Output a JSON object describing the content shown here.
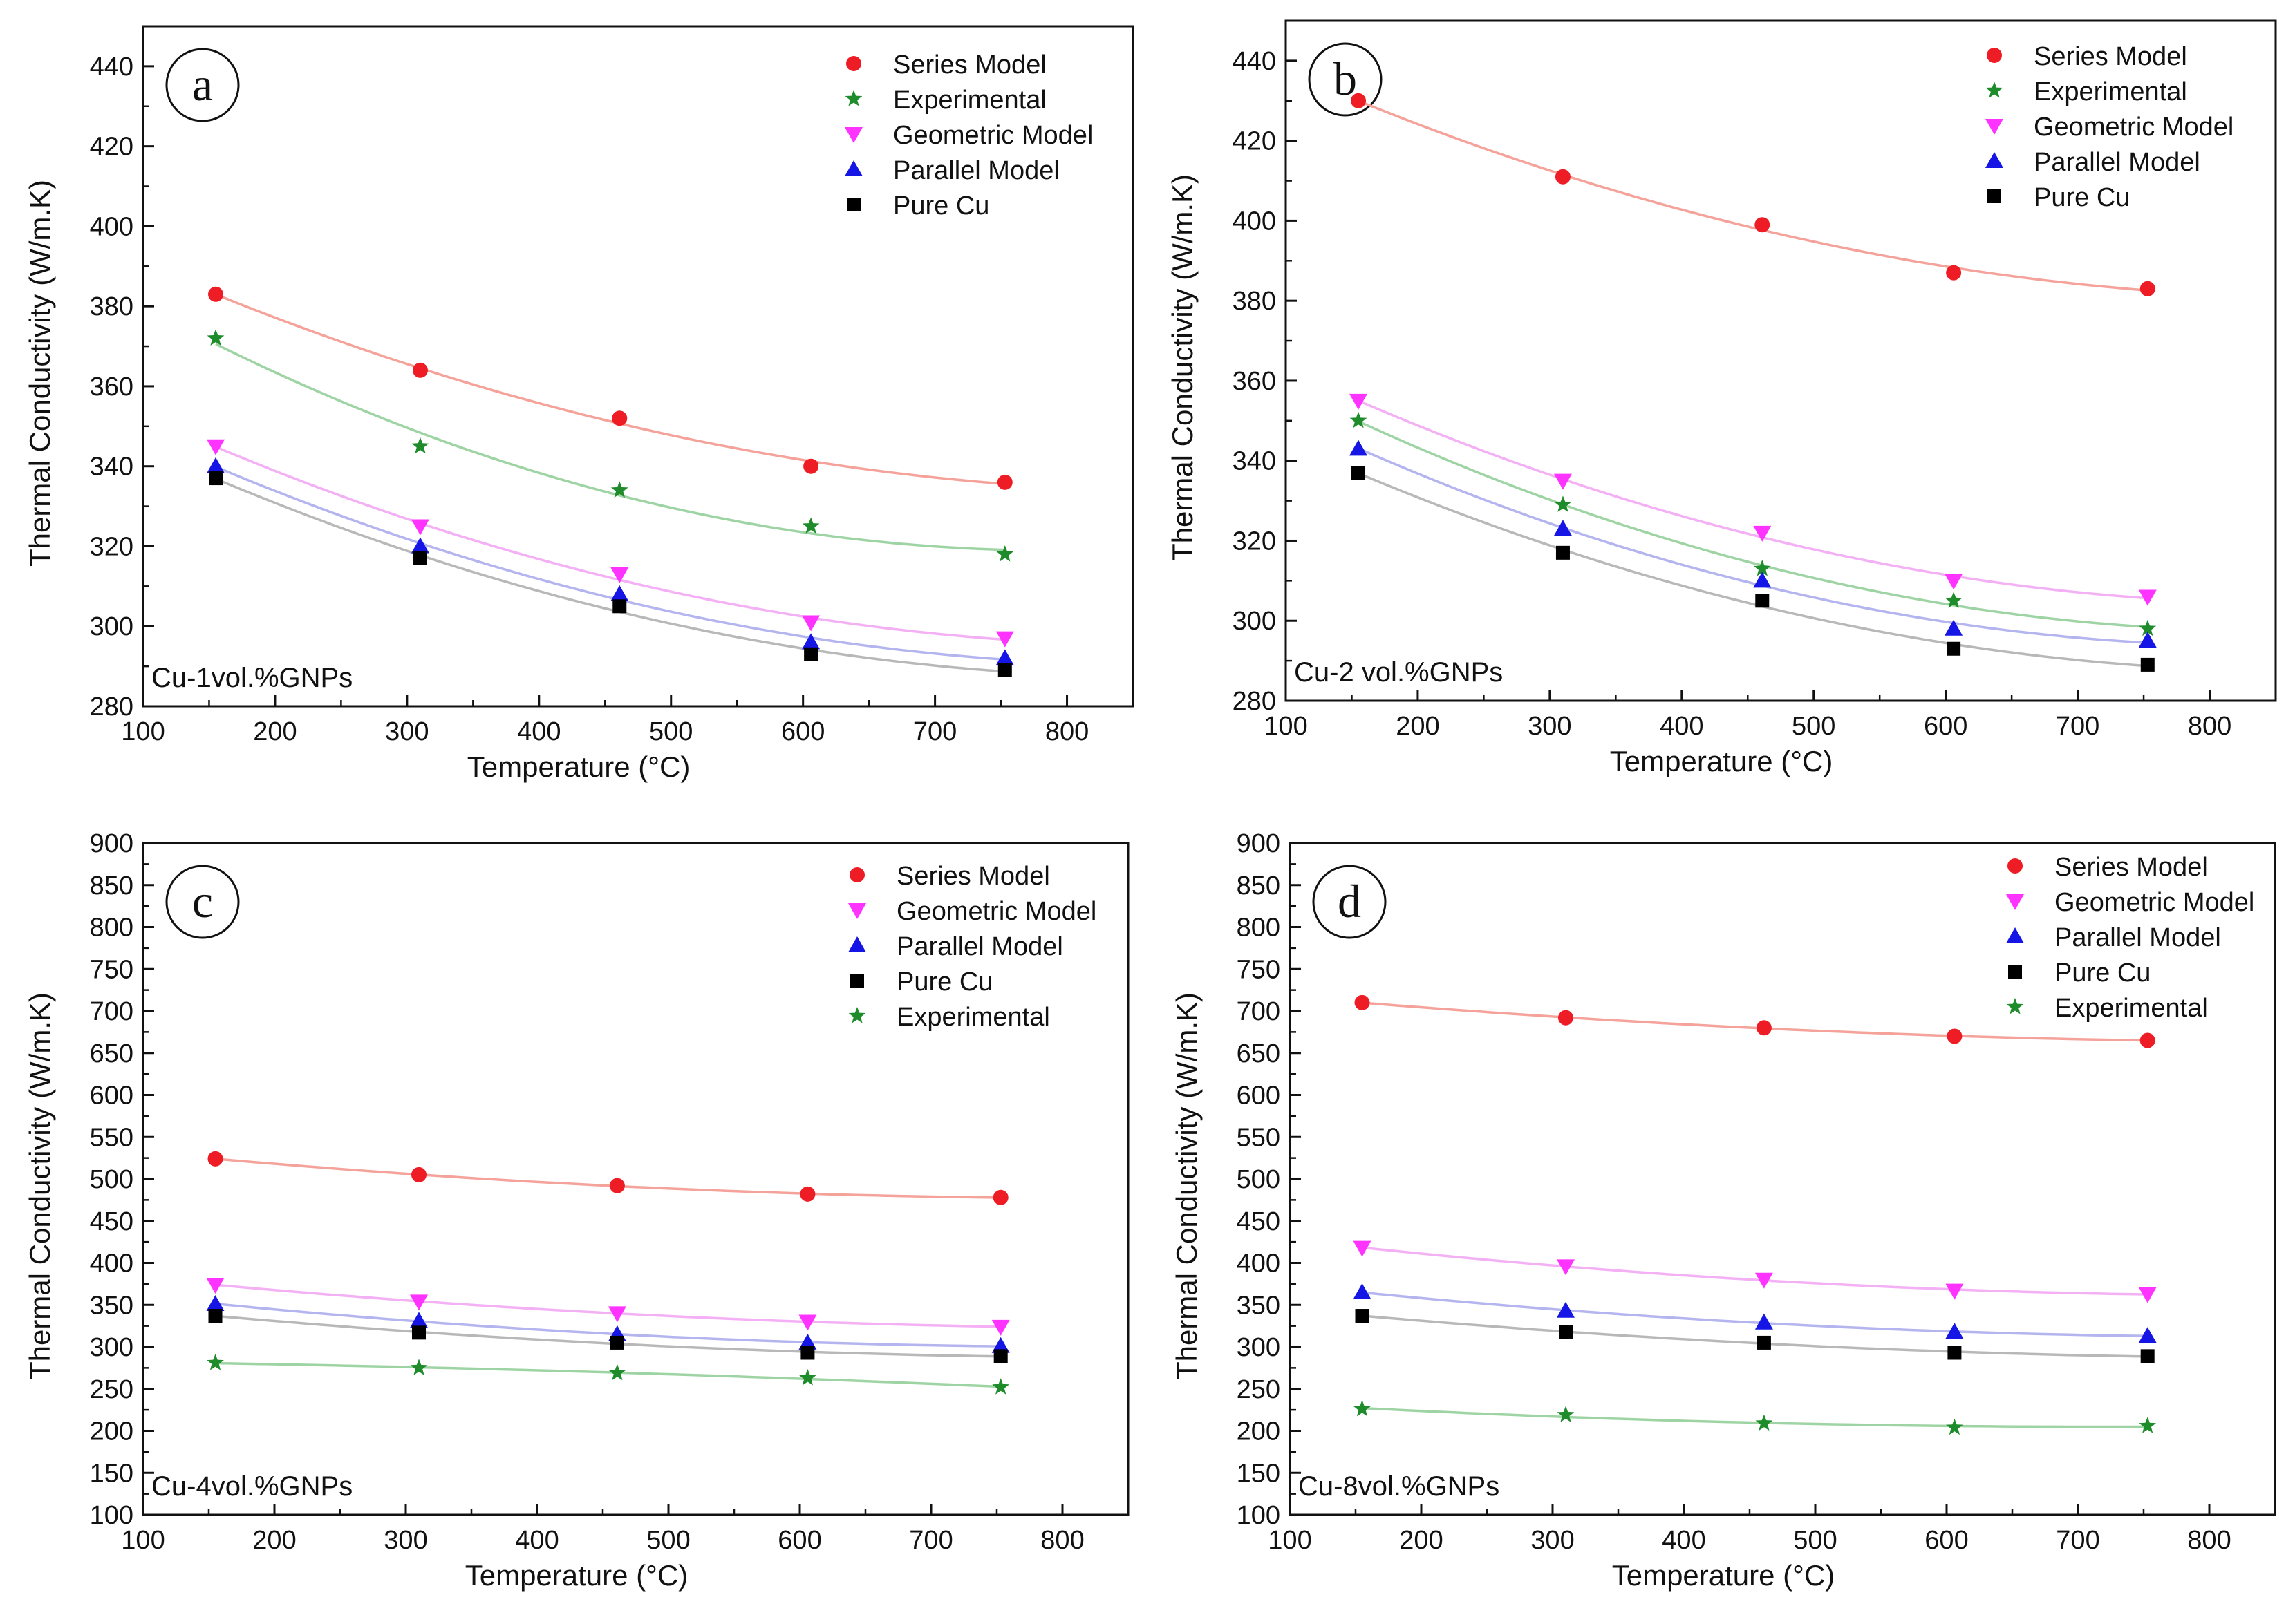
{
  "figure": {
    "colors": {
      "series_model": "#ee1c24",
      "experimental": "#1e8c2a",
      "geometric_model": "#ff33ff",
      "parallel_model": "#1515e6",
      "pure_cu": "#000000"
    },
    "fit_colors": {
      "series_model": "#f4a29a",
      "experimental": "#9ed4a3",
      "geometric_model": "#f4b0f4",
      "parallel_model": "#b4b4ef",
      "pure_cu": "#b8b8b8"
    }
  },
  "chart_data": [
    {
      "type": "scatter",
      "panel_label": "a",
      "annotation": "Cu-1vol.%GNPs",
      "xlabel": "Temperature (°C)",
      "ylabel": "Thermal Conductivity (W/m.K)",
      "xlim": [
        100,
        850
      ],
      "ylim": [
        280,
        450
      ],
      "xticks": [
        100,
        200,
        300,
        400,
        500,
        600,
        700,
        800
      ],
      "yticks": [
        280,
        300,
        320,
        340,
        360,
        380,
        400,
        420,
        440
      ],
      "x": [
        155,
        310,
        461,
        606,
        753
      ],
      "legend_order": [
        "series_model",
        "experimental",
        "geometric_model",
        "parallel_model",
        "pure_cu"
      ],
      "series": [
        {
          "key": "series_model",
          "name": "Series Model",
          "marker": "circle",
          "values": [
            383,
            364,
            352,
            340,
            336
          ]
        },
        {
          "key": "experimental",
          "name": "Experimental",
          "marker": "star",
          "values": [
            372,
            345,
            334,
            325,
            318
          ]
        },
        {
          "key": "geometric_model",
          "name": "Geometric Model",
          "marker": "triangle-down",
          "values": [
            345,
            325,
            313,
            301,
            297
          ]
        },
        {
          "key": "parallel_model",
          "name": "Parallel Model",
          "marker": "triangle-up",
          "values": [
            340,
            320,
            308,
            296,
            292
          ]
        },
        {
          "key": "pure_cu",
          "name": "Pure Cu",
          "marker": "square",
          "values": [
            337,
            317,
            305,
            293,
            289
          ]
        }
      ]
    },
    {
      "type": "scatter",
      "panel_label": "b",
      "annotation": "Cu-2 vol.%GNPs",
      "xlabel": "Temperature (°C)",
      "ylabel": "Thermal Conductivity (W/m.K)",
      "xlim": [
        100,
        850
      ],
      "ylim": [
        280,
        450
      ],
      "xticks": [
        100,
        200,
        300,
        400,
        500,
        600,
        700,
        800
      ],
      "yticks": [
        280,
        300,
        320,
        340,
        360,
        380,
        400,
        420,
        440
      ],
      "x": [
        155,
        310,
        461,
        606,
        753
      ],
      "legend_order": [
        "series_model",
        "experimental",
        "geometric_model",
        "parallel_model",
        "pure_cu"
      ],
      "series": [
        {
          "key": "series_model",
          "name": "Series Model",
          "marker": "circle",
          "values": [
            430,
            411,
            399,
            387,
            383
          ]
        },
        {
          "key": "experimental",
          "name": "Experimental",
          "marker": "star",
          "values": [
            350,
            329,
            313,
            305,
            298
          ]
        },
        {
          "key": "geometric_model",
          "name": "Geometric Model",
          "marker": "triangle-down",
          "values": [
            355,
            335,
            322,
            310,
            306
          ]
        },
        {
          "key": "parallel_model",
          "name": "Parallel Model",
          "marker": "triangle-up",
          "values": [
            343,
            323,
            310,
            298,
            295
          ]
        },
        {
          "key": "pure_cu",
          "name": "Pure Cu",
          "marker": "square",
          "values": [
            337,
            317,
            305,
            293,
            289
          ]
        }
      ]
    },
    {
      "type": "scatter",
      "panel_label": "c",
      "annotation": "Cu-4vol.%GNPs",
      "xlabel": "Temperature (°C)",
      "ylabel": "Thermal Conductivity (W/m.K)",
      "xlim": [
        100,
        850
      ],
      "ylim": [
        100,
        900
      ],
      "xticks": [
        100,
        200,
        300,
        400,
        500,
        600,
        700,
        800
      ],
      "yticks": [
        100,
        150,
        200,
        250,
        300,
        350,
        400,
        450,
        500,
        550,
        600,
        650,
        700,
        750,
        800,
        850,
        900
      ],
      "x": [
        155,
        310,
        461,
        606,
        753
      ],
      "legend_order": [
        "series_model",
        "geometric_model",
        "parallel_model",
        "pure_cu",
        "experimental"
      ],
      "series": [
        {
          "key": "series_model",
          "name": "Series Model",
          "marker": "circle",
          "values": [
            524,
            505,
            492,
            482,
            478
          ]
        },
        {
          "key": "geometric_model",
          "name": "Geometric Model",
          "marker": "triangle-down",
          "values": [
            374,
            354,
            340,
            330,
            324
          ]
        },
        {
          "key": "parallel_model",
          "name": "Parallel Model",
          "marker": "triangle-up",
          "values": [
            351,
            331,
            315,
            305,
            301
          ]
        },
        {
          "key": "pure_cu",
          "name": "Pure Cu",
          "marker": "square",
          "values": [
            337,
            317,
            305,
            293,
            289
          ]
        },
        {
          "key": "experimental",
          "name": "Experimental",
          "marker": "star",
          "values": [
            281,
            275,
            269,
            263,
            252
          ]
        }
      ]
    },
    {
      "type": "scatter",
      "panel_label": "d",
      "annotation": "Cu-8vol.%GNPs",
      "xlabel": "Temperature (°C)",
      "ylabel": "Thermal Conductivity (W/m.K)",
      "xlim": [
        100,
        850
      ],
      "ylim": [
        100,
        900
      ],
      "xticks": [
        100,
        200,
        300,
        400,
        500,
        600,
        700,
        800
      ],
      "yticks": [
        100,
        150,
        200,
        250,
        300,
        350,
        400,
        450,
        500,
        550,
        600,
        650,
        700,
        750,
        800,
        850,
        900
      ],
      "x": [
        155,
        310,
        461,
        606,
        753
      ],
      "legend_order": [
        "series_model",
        "geometric_model",
        "parallel_model",
        "pure_cu",
        "experimental"
      ],
      "series": [
        {
          "key": "series_model",
          "name": "Series Model",
          "marker": "circle",
          "values": [
            710,
            692,
            680,
            670,
            665
          ]
        },
        {
          "key": "geometric_model",
          "name": "Geometric Model",
          "marker": "triangle-down",
          "values": [
            418,
            396,
            380,
            367,
            363
          ]
        },
        {
          "key": "parallel_model",
          "name": "Parallel Model",
          "marker": "triangle-up",
          "values": [
            365,
            343,
            329,
            318,
            313
          ]
        },
        {
          "key": "pure_cu",
          "name": "Pure Cu",
          "marker": "square",
          "values": [
            337,
            318,
            305,
            293,
            289
          ]
        },
        {
          "key": "experimental",
          "name": "Experimental",
          "marker": "star",
          "values": [
            226,
            219,
            209,
            204,
            206
          ]
        }
      ]
    }
  ]
}
